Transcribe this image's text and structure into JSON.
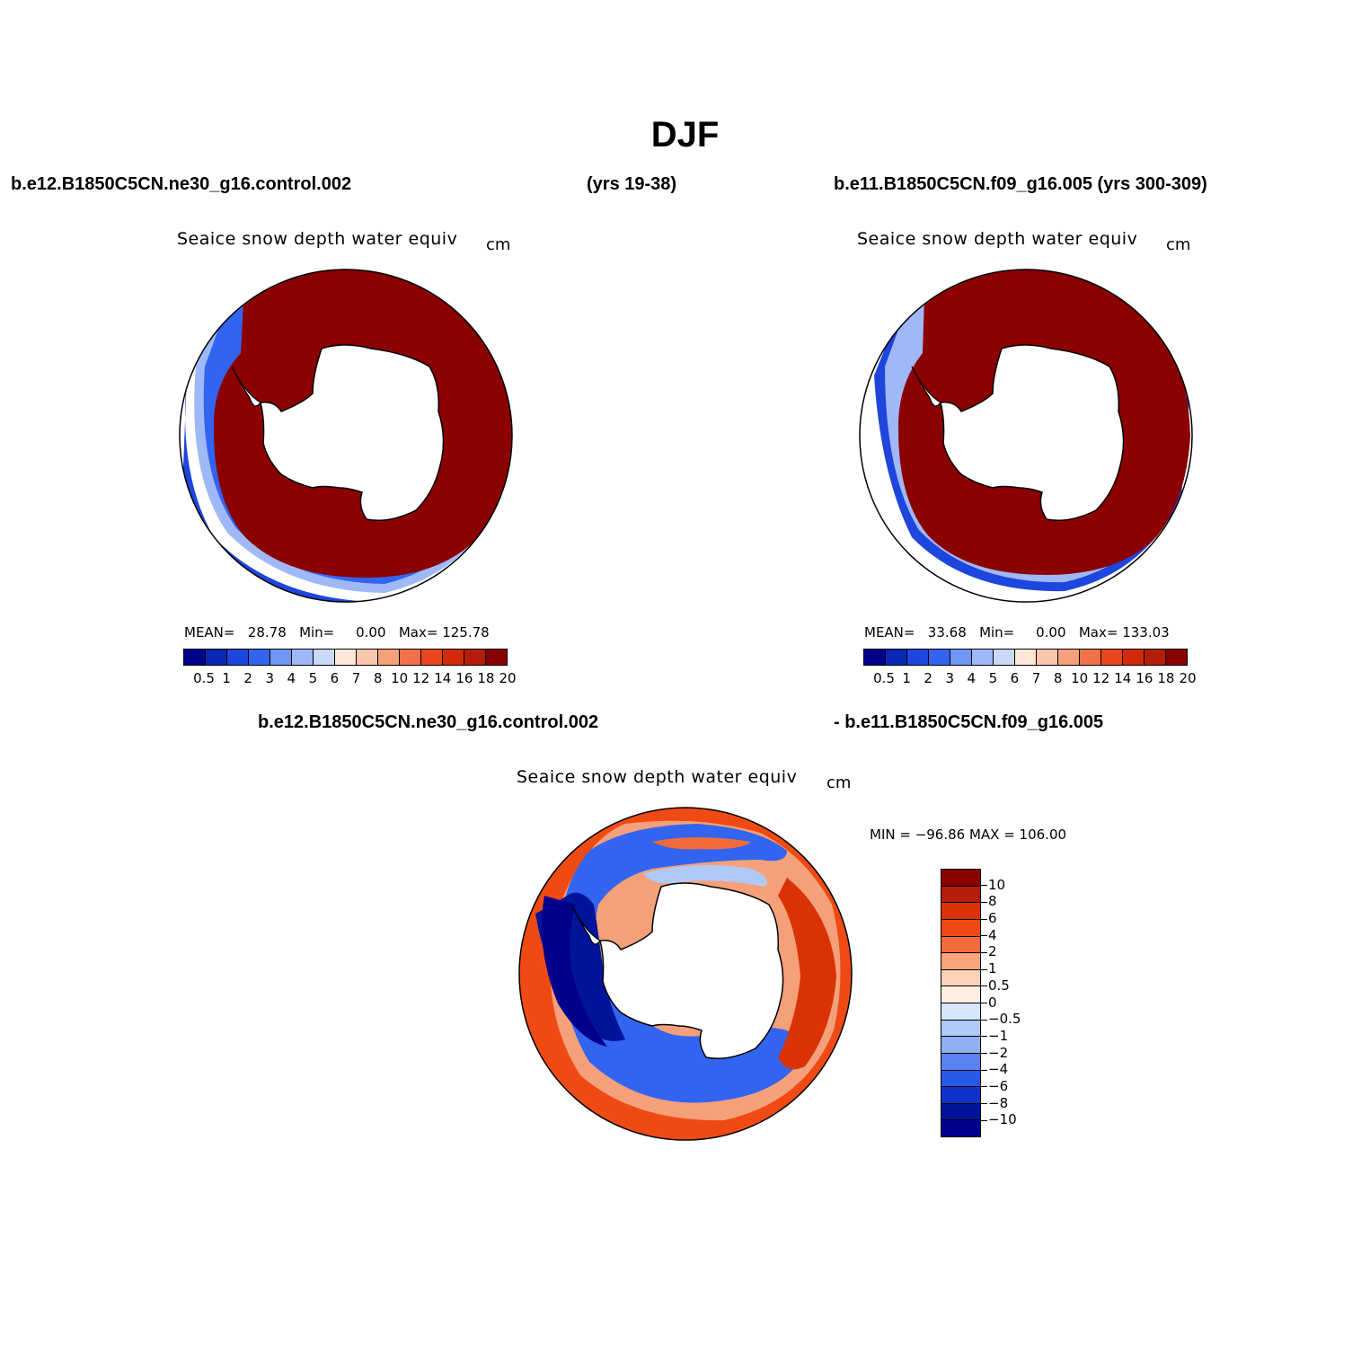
{
  "title": "DJF",
  "header": {
    "case1": "b.e12.B1850C5CN.ne30_g16.control.002",
    "case1_years": "(yrs 19-38)",
    "case2": "b.e11.B1850C5CN.f09_g16.005 (yrs 300-309)",
    "diff_left": "b.e12.B1850C5CN.ne30_g16.control.002",
    "diff_right": "- b.e11.B1850C5CN.f09_g16.005"
  },
  "panels": [
    {
      "title": "Seaice snow depth water equiv",
      "units": "cm",
      "stats": {
        "mean_label": "MEAN=",
        "mean": "28.78",
        "min_label": "Min=",
        "min": "0.00",
        "max_label": "Max=",
        "max": "125.78"
      }
    },
    {
      "title": "Seaice snow depth water equiv",
      "units": "cm",
      "stats": {
        "mean_label": "MEAN=",
        "mean": "33.68",
        "min_label": "Min=",
        "min": "0.00",
        "max_label": "Max=",
        "max": "133.03"
      }
    },
    {
      "title": "Seaice snow depth water equiv",
      "units": "cm",
      "minmax": "MIN = −96.86 MAX = 106.00"
    }
  ],
  "abs_colorbar": {
    "colors": [
      "#00008b",
      "#0a28b4",
      "#1e46dc",
      "#3264f0",
      "#6e96f5",
      "#9fb9f8",
      "#c8daf8",
      "#fce6d8",
      "#f8c6ab",
      "#f4a07a",
      "#f07048",
      "#e8461e",
      "#d22a0a",
      "#b41e0a",
      "#8b0000"
    ],
    "labels": [
      "0.5",
      "1",
      "2",
      "3",
      "4",
      "5",
      "6",
      "7",
      "8",
      "10",
      "12",
      "14",
      "16",
      "18",
      "20"
    ]
  },
  "diff_colorbar": {
    "colors": [
      "#8b0000",
      "#b41e0a",
      "#d93205",
      "#f04a14",
      "#f36b3a",
      "#f8a578",
      "#fcd2b9",
      "#fdeee1",
      "#d6e6fb",
      "#b0caf8",
      "#8fb0f5",
      "#5a82f0",
      "#285ae6",
      "#0f32c8",
      "#00149b",
      "#00008b"
    ],
    "labels": [
      "10",
      "8",
      "6",
      "4",
      "2",
      "1",
      "0.5",
      "0",
      "−0.5",
      "−1",
      "−2",
      "−4",
      "−6",
      "−8",
      "−10"
    ]
  },
  "map_colors": {
    "ice_dark_red": "#8b0000",
    "edge_blue": "#1e46dc",
    "deep_blue": "#00149b",
    "mid_blue": "#3264f0",
    "light_blue": "#9fb9f8",
    "orange": "#f04a14",
    "light_orange": "#f4a07a"
  }
}
